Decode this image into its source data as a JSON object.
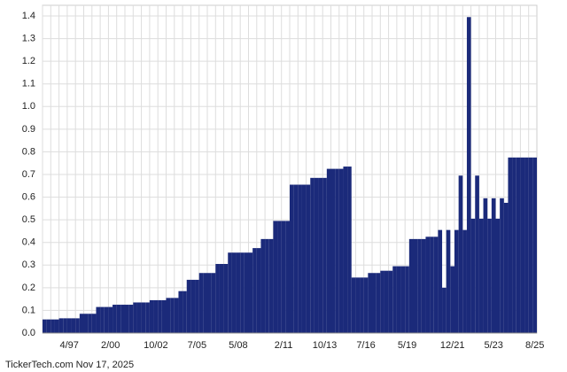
{
  "chart_data": {
    "type": "bar",
    "color": "#1b2a7a",
    "grid": true,
    "footer": "TickerTech.com  Nov 17, 2025",
    "categories": [
      null,
      null,
      null,
      null,
      null,
      null,
      "4/97",
      null,
      null,
      null,
      null,
      null,
      null,
      null,
      null,
      null,
      "2/00",
      null,
      null,
      null,
      null,
      null,
      null,
      null,
      null,
      null,
      null,
      "10/02",
      null,
      null,
      null,
      null,
      null,
      null,
      null,
      null,
      null,
      "7/05",
      null,
      null,
      null,
      null,
      null,
      null,
      null,
      null,
      null,
      "5/08",
      null,
      null,
      null,
      null,
      null,
      null,
      null,
      null,
      null,
      null,
      "2/11",
      null,
      null,
      null,
      null,
      null,
      null,
      null,
      null,
      null,
      "10/13",
      null,
      null,
      null,
      null,
      null,
      null,
      null,
      null,
      null,
      "7/16",
      null,
      null,
      null,
      null,
      null,
      null,
      null,
      null,
      null,
      "5/19",
      null,
      null,
      null,
      null,
      null,
      null,
      null,
      null,
      null,
      null,
      "12/21",
      null,
      null,
      null,
      null,
      null,
      null,
      null,
      null,
      null,
      "5/23",
      null,
      null,
      null,
      null,
      null,
      null,
      null,
      null,
      null,
      "8/25"
    ],
    "values": [
      0.06,
      0.06,
      0.06,
      0.06,
      0.065,
      0.065,
      0.065,
      0.065,
      0.065,
      0.085,
      0.085,
      0.085,
      0.085,
      0.115,
      0.115,
      0.115,
      0.115,
      0.125,
      0.125,
      0.125,
      0.125,
      0.125,
      0.135,
      0.135,
      0.135,
      0.135,
      0.145,
      0.145,
      0.145,
      0.145,
      0.155,
      0.155,
      0.155,
      0.185,
      0.185,
      0.235,
      0.235,
      0.235,
      0.265,
      0.265,
      0.265,
      0.265,
      0.305,
      0.305,
      0.305,
      0.355,
      0.355,
      0.355,
      0.355,
      0.355,
      0.355,
      0.375,
      0.375,
      0.415,
      0.415,
      0.415,
      0.495,
      0.495,
      0.495,
      0.495,
      0.655,
      0.655,
      0.655,
      0.655,
      0.655,
      0.685,
      0.685,
      0.685,
      0.685,
      0.725,
      0.725,
      0.725,
      0.725,
      0.735,
      0.735,
      0.245,
      0.245,
      0.245,
      0.245,
      0.265,
      0.265,
      0.265,
      0.275,
      0.275,
      0.275,
      0.295,
      0.295,
      0.295,
      0.295,
      0.415,
      0.415,
      0.415,
      0.415,
      0.425,
      0.425,
      0.425,
      0.455,
      0.2,
      0.455,
      0.295,
      0.455,
      0.695,
      0.455,
      1.395,
      0.505,
      0.695,
      0.505,
      0.595,
      0.505,
      0.595,
      0.505,
      0.595,
      0.575,
      0.775,
      0.775,
      0.775,
      0.775,
      0.775,
      0.775,
      0.775
    ],
    "ylim": [
      0,
      1.4
    ],
    "yticks": [
      {
        "value": 0,
        "label": "0.0"
      },
      0.1,
      0.2,
      0.3,
      0.4,
      0.5,
      0.6,
      0.7,
      0.8,
      0.9,
      {
        "value": 1,
        "label": "1.0"
      },
      1.1,
      1.2,
      1.3,
      1.4
    ]
  }
}
